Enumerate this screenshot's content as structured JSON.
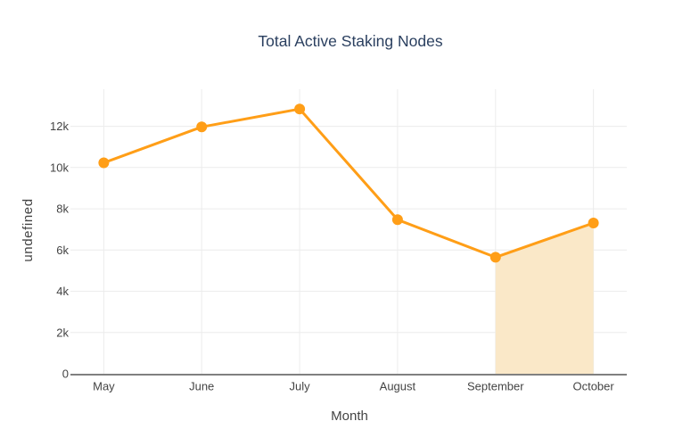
{
  "chart_data": {
    "type": "line",
    "title": "Total Active Staking Nodes",
    "xlabel": "Month",
    "ylabel": "undefined",
    "categories": [
      "May",
      "June",
      "July",
      "August",
      "September",
      "October"
    ],
    "series": [
      {
        "name": "Total Active Staking Nodes",
        "values": [
          10230,
          11970,
          12840,
          7470,
          5650,
          7310
        ]
      }
    ],
    "yticks": {
      "labels": [
        "0",
        "2k",
        "4k",
        "6k",
        "8k",
        "10k",
        "12k"
      ],
      "values": [
        0,
        2000,
        4000,
        6000,
        8000,
        10000,
        12000
      ]
    },
    "ylim": [
      0,
      13800
    ],
    "grid": true,
    "legend": "none",
    "marker_size": 6,
    "line_width": 3,
    "fill_region": {
      "from": "September",
      "to": "October",
      "fill_to_zero": true
    },
    "colors": {
      "line": "#ff9e17",
      "marker": "#ff9e17",
      "fill": "#fae8c8",
      "grid": "#ececec",
      "axis_line": "#808080",
      "title_text": "#2a3f5f",
      "axis_text": "#444444",
      "background": "#ffffff"
    }
  }
}
